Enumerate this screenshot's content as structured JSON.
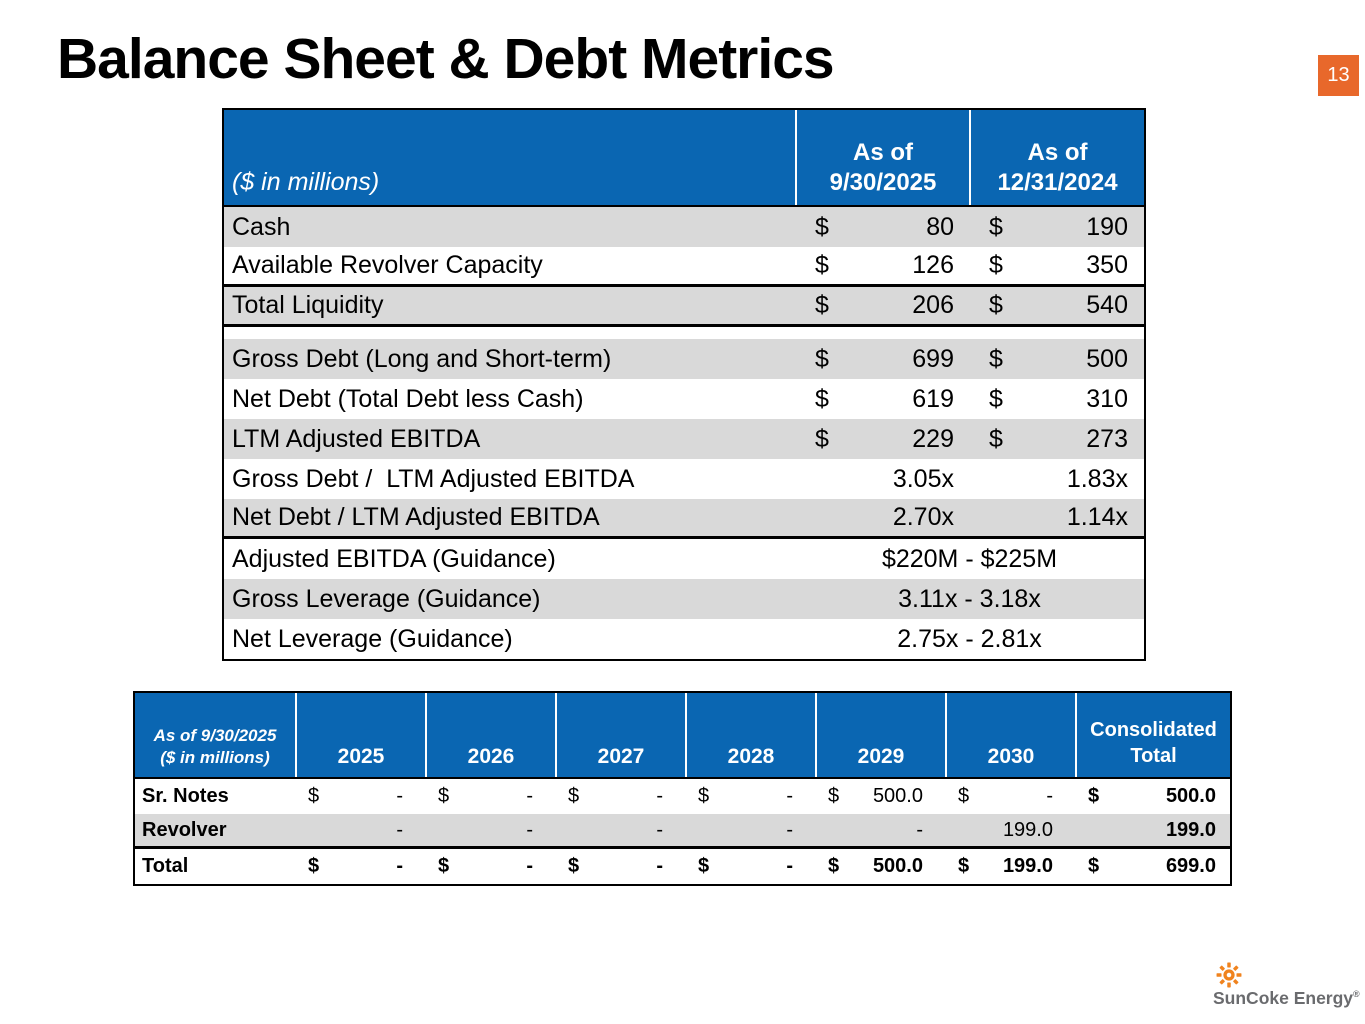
{
  "page": {
    "title": "Balance Sheet & Debt Metrics",
    "page_number": "13"
  },
  "colors": {
    "header_blue": "#0A66B2",
    "row_gray": "#D9D9D9",
    "accent_orange": "#E8682B",
    "logo_orange": "#F0831E",
    "logo_gray": "#6A6B6E"
  },
  "icons": {
    "logo_icon": "sunburst-icon"
  },
  "main_table": {
    "header": {
      "label": "($ in millions)",
      "col1_line1": "As of",
      "col1_line2": "9/30/2025",
      "col2_line1": "As of",
      "col2_line2": "12/31/2024"
    },
    "rows": [
      {
        "type": "currency",
        "label": "Cash",
        "shaded": true,
        "col1": {
          "prefix": "$",
          "value": "80"
        },
        "col2": {
          "prefix": "$",
          "value": "190"
        }
      },
      {
        "type": "currency",
        "label": "Available Revolver Capacity",
        "shaded": false,
        "thick_bottom": true,
        "col1": {
          "prefix": "$",
          "value": "126"
        },
        "col2": {
          "prefix": "$",
          "value": "350"
        }
      },
      {
        "type": "currency",
        "label": "Total Liquidity",
        "shaded": true,
        "thick_bottom": true,
        "col1": {
          "prefix": "$",
          "value": "206"
        },
        "col2": {
          "prefix": "$",
          "value": "540"
        }
      },
      {
        "type": "spacer"
      },
      {
        "type": "currency",
        "label": "Gross Debt (Long and Short-term)",
        "shaded": true,
        "col1": {
          "prefix": "$",
          "value": "699"
        },
        "col2": {
          "prefix": "$",
          "value": "500"
        }
      },
      {
        "type": "currency",
        "label": "Net Debt (Total Debt less Cash)",
        "shaded": false,
        "col1": {
          "prefix": "$",
          "value": "619"
        },
        "col2": {
          "prefix": "$",
          "value": "310"
        }
      },
      {
        "type": "currency",
        "label": "LTM Adjusted EBITDA",
        "shaded": true,
        "col1": {
          "prefix": "$",
          "value": "229"
        },
        "col2": {
          "prefix": "$",
          "value": "273"
        }
      },
      {
        "type": "ratio",
        "label": "Gross Debt /  LTM Adjusted EBITDA",
        "shaded": false,
        "col1": {
          "value": "3.05x"
        },
        "col2": {
          "value": "1.83x"
        }
      },
      {
        "type": "ratio",
        "label": "Net Debt / LTM Adjusted EBITDA",
        "shaded": true,
        "thick_bottom": true,
        "col1": {
          "value": "2.70x"
        },
        "col2": {
          "value": "1.14x"
        }
      },
      {
        "type": "span",
        "label": "Adjusted EBITDA (Guidance)",
        "shaded": false,
        "value": "$220M - $225M"
      },
      {
        "type": "span",
        "label": "Gross Leverage (Guidance)",
        "shaded": true,
        "value": "3.11x - 3.18x"
      },
      {
        "type": "span",
        "label": "Net Leverage (Guidance)",
        "shaded": false,
        "value": "2.75x - 2.81x"
      }
    ]
  },
  "maturity_table": {
    "header": {
      "label_line1": "As of 9/30/2025",
      "label_line2": "($ in millions)",
      "years": [
        "2025",
        "2026",
        "2027",
        "2028",
        "2029",
        "2030"
      ],
      "total_line1": "Consolidated",
      "total_line2": "Total"
    },
    "rows": [
      {
        "label": "Sr. Notes",
        "shaded": false,
        "cells": [
          {
            "prefix": "$",
            "value": "-"
          },
          {
            "prefix": "$",
            "value": "-"
          },
          {
            "prefix": "$",
            "value": "-"
          },
          {
            "prefix": "$",
            "value": "-"
          },
          {
            "prefix": "$",
            "value": "500.0"
          },
          {
            "prefix": "$",
            "value": "-"
          }
        ],
        "total": {
          "prefix": "$",
          "value": "500.0"
        }
      },
      {
        "label": "Revolver",
        "shaded": true,
        "thick_bottom": true,
        "cells": [
          {
            "prefix": "",
            "value": "-"
          },
          {
            "prefix": "",
            "value": "-"
          },
          {
            "prefix": "",
            "value": "-"
          },
          {
            "prefix": "",
            "value": "-"
          },
          {
            "prefix": "",
            "value": "-"
          },
          {
            "prefix": "",
            "value": "199.0"
          }
        ],
        "total": {
          "prefix": "",
          "value": "199.0"
        }
      },
      {
        "label": "Total",
        "shaded": false,
        "bold": true,
        "cells": [
          {
            "prefix": "$",
            "value": "-"
          },
          {
            "prefix": "$",
            "value": "-"
          },
          {
            "prefix": "$",
            "value": "-"
          },
          {
            "prefix": "$",
            "value": "-"
          },
          {
            "prefix": "$",
            "value": "500.0"
          },
          {
            "prefix": "$",
            "value": "199.0"
          }
        ],
        "total": {
          "prefix": "$",
          "value": "699.0"
        }
      }
    ]
  },
  "footer": {
    "logo_text": "SunCoke Energy",
    "logo_registered": "®"
  }
}
